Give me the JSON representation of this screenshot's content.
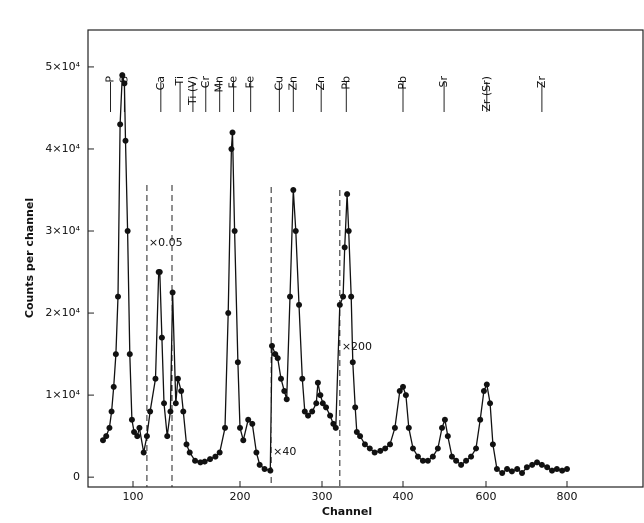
{
  "chart_data": {
    "type": "scatter",
    "x_label": "Channel",
    "y_label": "Counts per channel",
    "xlim": [
      58,
      988
    ],
    "ylim": [
      -1200,
      54500
    ],
    "xticks": [
      100,
      200,
      300,
      400,
      600,
      800
    ],
    "yticks": [
      0,
      {
        "value": 10000,
        "label": "1×10⁴"
      },
      {
        "value": 20000,
        "label": "2×10⁴"
      },
      {
        "value": 30000,
        "label": "3×10⁴"
      },
      {
        "value": 40000,
        "label": "4×10⁴"
      },
      {
        "value": 50000,
        "label": "5×10⁴"
      }
    ],
    "series": [
      {
        "color": "#111111",
        "x": [
          72,
          75,
          78,
          80,
          82,
          84,
          86,
          88,
          90,
          92,
          93,
          95,
          97,
          99,
          101,
          104,
          106,
          110,
          113,
          116,
          121,
          124,
          125,
          127,
          129,
          132,
          135,
          137,
          140,
          142,
          145,
          147,
          150,
          153,
          158,
          163,
          167,
          172,
          177,
          181,
          186,
          189,
          192,
          193,
          195,
          198,
          200,
          204,
          210,
          215,
          220,
          224,
          230,
          237,
          239,
          243,
          246,
          250,
          254,
          257,
          261,
          265,
          268,
          272,
          276,
          279,
          283,
          288,
          293,
          295,
          298,
          301,
          305,
          310,
          314,
          317,
          322,
          326,
          328,
          331,
          333,
          336,
          338,
          341,
          343,
          347,
          353,
          359,
          365,
          372,
          378,
          384,
          390,
          396,
          400,
          407,
          414,
          424,
          436,
          448,
          460,
          472,
          484,
          494,
          501,
          508,
          518,
          528,
          540,
          552,
          564,
          576,
          586,
          595,
          602,
          610,
          617,
          627,
          640,
          652,
          664,
          677,
          689,
          701,
          714,
          726,
          738,
          751,
          763,
          775,
          788,
          800
        ],
        "values": [
          4500,
          5000,
          6000,
          8000,
          11000,
          15000,
          22000,
          43000,
          49000,
          48000,
          41000,
          30000,
          15000,
          7000,
          5500,
          5000,
          6000,
          3000,
          5000,
          8000,
          12000,
          25000,
          25000,
          17000,
          9000,
          5000,
          8000,
          22500,
          9000,
          12000,
          10500,
          8000,
          4000,
          3000,
          2000,
          1800,
          1900,
          2200,
          2500,
          3000,
          6000,
          20000,
          40000,
          42000,
          30000,
          14000,
          6000,
          4500,
          7000,
          6500,
          3000,
          1500,
          1000,
          800,
          16000,
          15000,
          14500,
          12000,
          10500,
          9500,
          22000,
          35000,
          30000,
          21000,
          12000,
          8000,
          7500,
          8000,
          9000,
          11500,
          10000,
          9000,
          8500,
          7500,
          6500,
          6000,
          21000,
          22000,
          28000,
          34500,
          30000,
          22000,
          14000,
          8500,
          5500,
          5000,
          4000,
          3500,
          3000,
          3200,
          3500,
          4000,
          6000,
          10500,
          11000,
          10000,
          6000,
          3500,
          2500,
          2000,
          2000,
          2500,
          3500,
          6000,
          7000,
          5000,
          2500,
          2000,
          1500,
          2000,
          2500,
          3500,
          7000,
          10500,
          11300,
          9000,
          4000,
          1000,
          500,
          1000,
          700,
          1000,
          500,
          1200,
          1500,
          1800,
          1500,
          1200,
          800,
          1000,
          800,
          1000
        ]
      }
    ],
    "annotations": [
      {
        "text": "×0.05",
        "x": 113
      },
      {
        "text": "×40",
        "x": 238
      },
      {
        "text": "×200",
        "x": 322
      }
    ],
    "element_lines": [
      {
        "label": "P",
        "x": 79
      },
      {
        "label": "S",
        "x": 92
      },
      {
        "label": "Ca",
        "x": 126
      },
      {
        "label": "Ti",
        "x": 144
      },
      {
        "label": "Ti (V)",
        "x": 156
      },
      {
        "label": "Cr",
        "x": 168
      },
      {
        "label": "Mn",
        "x": 181
      },
      {
        "label": "Fe",
        "x": 194
      },
      {
        "label": "Fe",
        "x": 213
      },
      {
        "label": "Cu",
        "x": 248
      },
      {
        "label": "Zn",
        "x": 265
      },
      {
        "label": "Zn",
        "x": 299
      },
      {
        "label": "Pb",
        "x": 330
      },
      {
        "label": "Pb",
        "x": 400
      },
      {
        "label": "Sr",
        "x": 499
      },
      {
        "label": "Zr (Sr)",
        "x": 602
      },
      {
        "label": "Zr",
        "x": 738
      }
    ]
  }
}
